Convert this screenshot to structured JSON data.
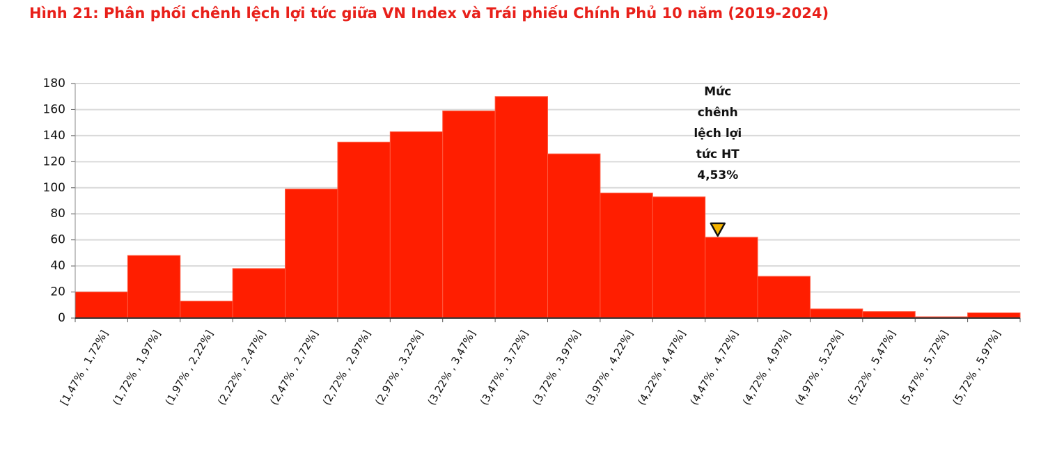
{
  "chart_data": {
    "type": "histogram",
    "title": "Hình 21: Phân phối chênh lệch lợi tức giữa VN Index và Trái phiếu Chính Phủ 10 năm (2019-2024)",
    "bins": [
      1.47,
      1.72,
      1.97,
      2.22,
      2.47,
      2.72,
      2.97,
      3.22,
      3.47,
      3.72,
      3.97,
      4.22,
      4.47,
      4.72,
      4.97,
      5.22,
      5.47,
      5.72,
      5.97
    ],
    "categories": [
      "[1,47% , 1,72%]",
      "(1,72% , 1,97%]",
      "(1,97% , 2,22%]",
      "(2,22% , 2,47%]",
      "(2,47% , 2,72%]",
      "(2,72% , 2,97%]",
      "(2,97% , 3,22%]",
      "(3,22% , 3,47%]",
      "(3,47% , 3,72%]",
      "(3,72% , 3,97%]",
      "(3,97% , 4,22%]",
      "(4,22% , 4,47%]",
      "(4,47% , 4,72%]",
      "(4,72% , 4,97%]",
      "(4,97% , 5,22%]",
      "(5,22% , 5,47%]",
      "(5,47% , 5,72%]",
      "(5,72% , 5,97%]"
    ],
    "values": [
      20,
      48,
      13,
      38,
      99,
      135,
      143,
      159,
      170,
      126,
      96,
      93,
      62,
      32,
      7,
      5,
      1,
      4
    ],
    "color": "#ff1e00",
    "xlim": [
      1.47,
      5.97
    ],
    "ylim": [
      0,
      180
    ],
    "yticks": [
      0,
      20,
      40,
      60,
      80,
      100,
      120,
      140,
      160,
      180
    ],
    "grid": true,
    "annotation": {
      "lines": [
        "Mức",
        "chênh",
        "lệch lợi",
        "tức HT",
        "4,53%"
      ],
      "x": 4.53,
      "color": "#f5b400"
    }
  }
}
